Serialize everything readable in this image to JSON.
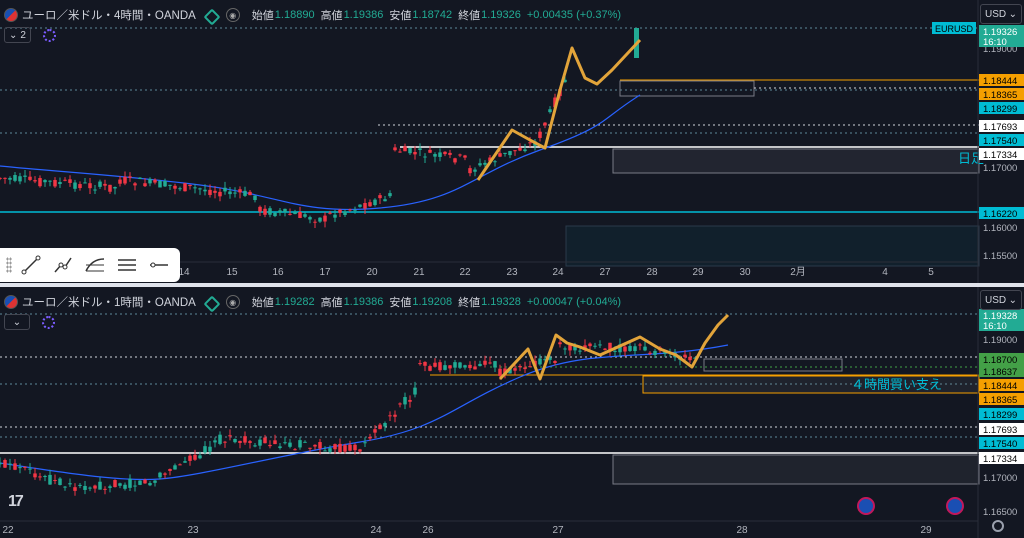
{
  "top": {
    "symbol": "ユーロ／米ドル・4時間・OANDA",
    "ohlc": [
      {
        "label": "始値",
        "value": "1.18890"
      },
      {
        "label": "高値",
        "value": "1.19386"
      },
      {
        "label": "安値",
        "value": "1.18742"
      },
      {
        "label": "終値",
        "value": "1.19326"
      }
    ],
    "change": "+0.00435 (+0.37%)",
    "collapse_label": "2",
    "currency": "USD",
    "tag": "EURUSD",
    "time_tags": [
      {
        "text": "16:10",
        "bg": "#22ab94",
        "fg": "#ffffff"
      }
    ],
    "price_tags": [
      {
        "text": "1.19326",
        "bg": "#22ab94",
        "fg": "#ffffff"
      },
      {
        "text": "1.19000",
        "bg": "",
        "fg": "#b2b5be"
      },
      {
        "text": "1.18444",
        "bg": "#f59f00",
        "fg": "#000000"
      },
      {
        "text": "1.18365",
        "bg": "#f59f00",
        "fg": "#000000"
      },
      {
        "text": "1.18299",
        "bg": "#00bcd4",
        "fg": "#000000"
      },
      {
        "text": "1.17693",
        "bg": "#ffffff",
        "fg": "#000000"
      },
      {
        "text": "1.17540",
        "bg": "#00bcd4",
        "fg": "#000000"
      },
      {
        "text": "1.17334",
        "bg": "#ffffff",
        "fg": "#000000"
      },
      {
        "text": "1.17000",
        "bg": "",
        "fg": "#b2b5be"
      },
      {
        "text": "1.16220",
        "bg": "#00bcd4",
        "fg": "#000000"
      },
      {
        "text": "1.16000",
        "bg": "",
        "fg": "#b2b5be"
      },
      {
        "text": "1.15500",
        "bg": "",
        "fg": "#b2b5be"
      }
    ],
    "x_labels": [
      "14",
      "15",
      "16",
      "17",
      "20",
      "21",
      "22",
      "23",
      "24",
      "27",
      "28",
      "29",
      "30",
      "2月",
      "4",
      "5"
    ],
    "annotation": "日足"
  },
  "bottom": {
    "symbol": "ユーロ／米ドル・1時間・OANDA",
    "ohlc": [
      {
        "label": "始値",
        "value": "1.19282"
      },
      {
        "label": "高値",
        "value": "1.19386"
      },
      {
        "label": "安値",
        "value": "1.19208"
      },
      {
        "label": "終値",
        "value": "1.19328"
      }
    ],
    "change": "+0.00047 (+0.04%)",
    "currency": "USD",
    "time_tags": [
      {
        "text": "16:10",
        "bg": "#22ab94",
        "fg": "#ffffff"
      }
    ],
    "price_tags": [
      {
        "text": "1.19328",
        "bg": "#22ab94",
        "fg": "#ffffff"
      },
      {
        "text": "1.19000",
        "bg": "",
        "fg": "#b2b5be"
      },
      {
        "text": "1.18700",
        "bg": "#43a047",
        "fg": "#000000"
      },
      {
        "text": "1.18637",
        "bg": "#43a047",
        "fg": "#000000"
      },
      {
        "text": "1.18444",
        "bg": "#f59f00",
        "fg": "#000000"
      },
      {
        "text": "1.18365",
        "bg": "#f59f00",
        "fg": "#000000"
      },
      {
        "text": "1.18299",
        "bg": "#00bcd4",
        "fg": "#000000"
      },
      {
        "text": "1.17693",
        "bg": "#ffffff",
        "fg": "#000000"
      },
      {
        "text": "1.17540",
        "bg": "#00bcd4",
        "fg": "#000000"
      },
      {
        "text": "1.17334",
        "bg": "#ffffff",
        "fg": "#000000"
      },
      {
        "text": "1.17000",
        "bg": "",
        "fg": "#b2b5be"
      },
      {
        "text": "1.16500",
        "bg": "",
        "fg": "#b2b5be"
      }
    ],
    "x_labels": [
      "22",
      "23",
      "24",
      "26",
      "27",
      "28",
      "29"
    ],
    "annotation": "４時間買い支え"
  },
  "colors": {
    "up": "#22ab94",
    "down": "#f23645",
    "ma": "#2962ff",
    "zigzag": "#e2a43a",
    "cyan_line": "#00bcd4",
    "white_line": "#ffffff",
    "dotted": "#5d8a9a",
    "zone_border": "#787b86"
  },
  "icons": [
    "flag-icon",
    "live-dot-icon",
    "eye-icon",
    "indicator-icon",
    "chevron-down-icon",
    "trend-line-icon",
    "ray-icon",
    "fib-icon",
    "parallel-lines-icon",
    "horizontal-ray-icon",
    "news-icon",
    "settings-icon",
    "tradingview-logo"
  ],
  "brand": "17"
}
